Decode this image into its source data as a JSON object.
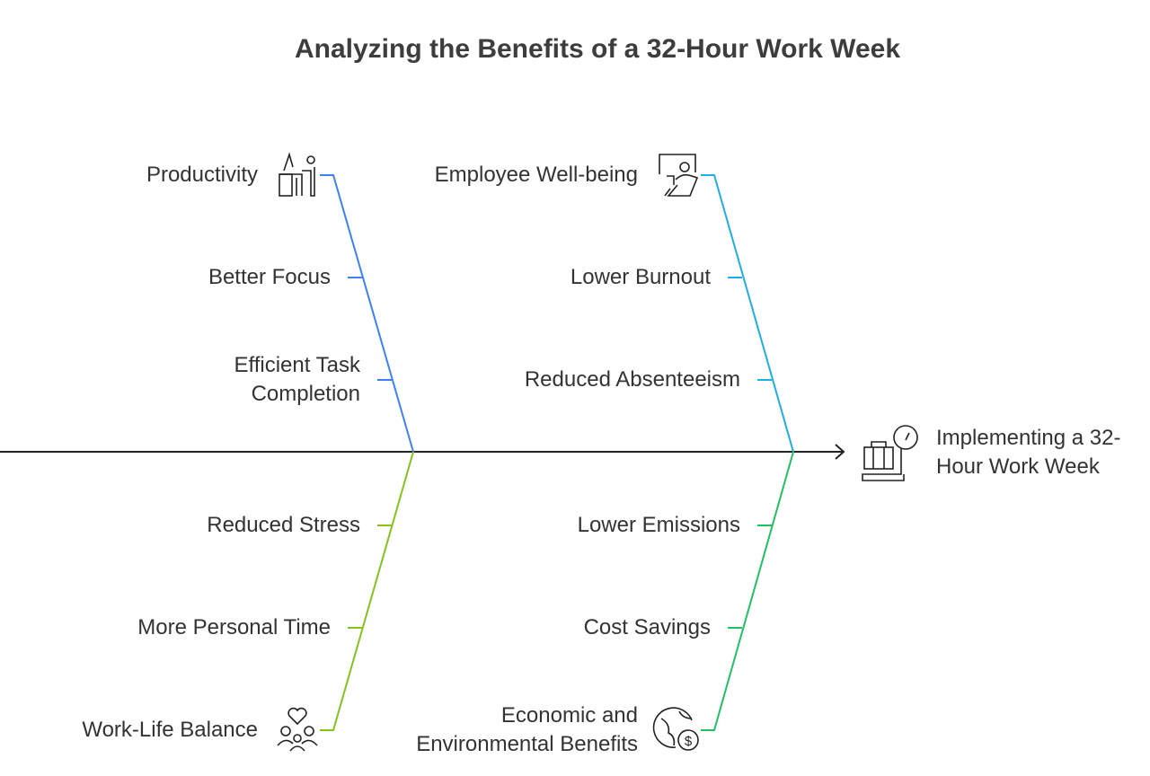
{
  "title": "Analyzing the Benefits of a 32-Hour Work Week",
  "effect": {
    "label": "Implementing a 32-Hour Work Week",
    "icon": "scale-luggage-icon"
  },
  "categories": [
    {
      "label": "Productivity",
      "icon": "desk-worker-icon",
      "color": "#3b82f6",
      "causes": [
        "Better Focus",
        "Efficient Task Completion"
      ]
    },
    {
      "label": "Employee Well-being",
      "icon": "relaxed-person-icon",
      "color": "#1eaee8",
      "causes": [
        "Lower Burnout",
        "Reduced Absenteeism"
      ]
    },
    {
      "label": "Work-Life Balance",
      "icon": "family-heart-icon",
      "color": "#84c41a",
      "causes": [
        "Reduced Stress",
        "More Personal Time"
      ]
    },
    {
      "label": "Economic and Environmental Benefits",
      "icon": "globe-dollar-icon",
      "color": "#22c063",
      "causes": [
        "Lower Emissions",
        "Cost Savings"
      ]
    }
  ]
}
